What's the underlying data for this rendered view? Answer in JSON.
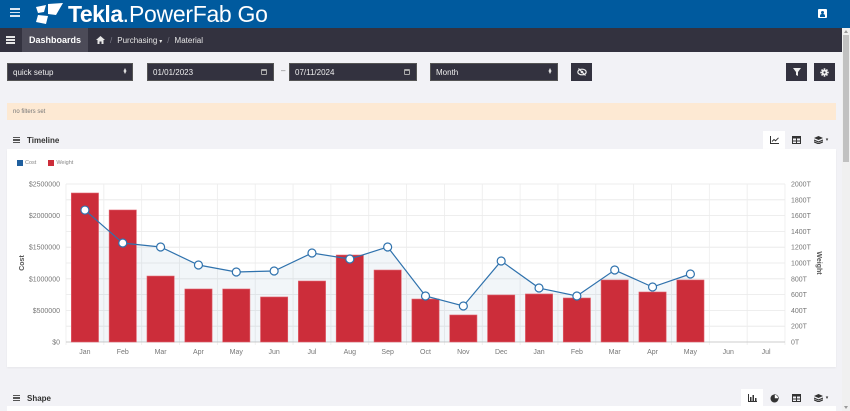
{
  "app": {
    "brand": "Tekla",
    "product": "PowerFab Go",
    "brand_color": "#005a9e"
  },
  "navbar": {
    "dashboards_label": "Dashboards",
    "breadcrumbs": [
      {
        "label": "Purchasing",
        "has_dropdown": true
      },
      {
        "label": "Material",
        "has_dropdown": false
      }
    ]
  },
  "filters": {
    "setup_select": "quick setup",
    "date_from": "01/01/2023",
    "date_to": "07/11/2024",
    "date_separator": "–",
    "period_select": "Month"
  },
  "alert": {
    "text": "no filters set",
    "color": "#fde9d3"
  },
  "sections": {
    "timeline": {
      "title": "Timeline",
      "tools": [
        "line-chart-icon",
        "table-icon",
        "layers-icon"
      ]
    },
    "shape": {
      "title": "Shape",
      "tools": [
        "bar-chart-icon",
        "pie-chart-icon",
        "table-icon",
        "layers-icon"
      ]
    }
  },
  "chart_data": {
    "type": "bar",
    "title": "Timeline",
    "categories": [
      "Jan",
      "Feb",
      "Mar",
      "Apr",
      "May",
      "Jun",
      "Jul",
      "Aug",
      "Sep",
      "Oct",
      "Nov",
      "Dec",
      "Jan",
      "Feb",
      "Mar",
      "Apr",
      "May",
      "Jun",
      "Jul"
    ],
    "series": [
      {
        "name": "Cost",
        "type": "line",
        "axis": "left",
        "color": "#1f5f9e",
        "values": [
          2088000,
          1566000,
          1503000,
          1218000,
          1108000,
          1123000,
          1408000,
          1313000,
          1503000,
          728000,
          570000,
          1282000,
          854000,
          728000,
          1139000,
          870000,
          1076000,
          null,
          null
        ]
      },
      {
        "name": "Weight",
        "type": "bar",
        "axis": "right",
        "color": "#cc2d3a",
        "values": [
          1886,
          1671,
          835,
          671,
          671,
          570,
          772,
          1101,
          911,
          544,
          342,
          595,
          608,
          557,
          785,
          633,
          785,
          null,
          null
        ]
      }
    ],
    "xlabel": "",
    "ylabel": "Cost",
    "ylabel_right": "Weight",
    "ylim": [
      0,
      2500000
    ],
    "ylim_right": [
      0,
      2000
    ],
    "yticks": [
      "$0",
      "$500000",
      "$1000000",
      "$1500000",
      "$2000000",
      "$2500000"
    ],
    "yticks_right": [
      "0T",
      "200T",
      "400T",
      "600T",
      "800T",
      "1000T",
      "1200T",
      "1400T",
      "1600T",
      "1800T",
      "2000T"
    ],
    "grid": true,
    "legend_position": "top-left"
  }
}
